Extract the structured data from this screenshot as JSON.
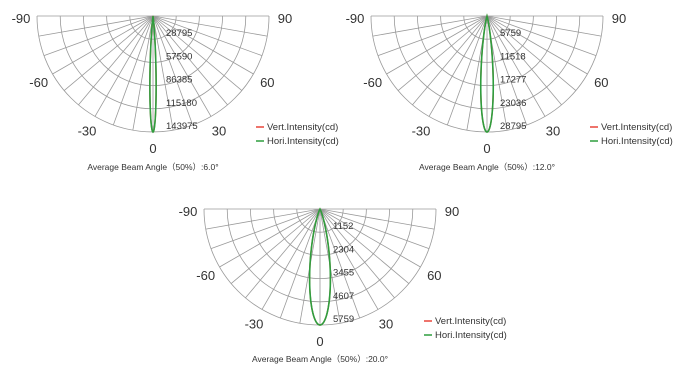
{
  "chart_data": [
    {
      "type": "polar",
      "angle_labels": [
        "-90",
        "-60",
        "-30",
        "0",
        "30",
        "60",
        "90"
      ],
      "radial_labels": [
        "28795",
        "57590",
        "86385",
        "115180",
        "143975"
      ],
      "rmax": 143975,
      "series": [
        {
          "name": "Vert.Intensity(cd)",
          "color": "#e8463a",
          "beam_angle": 6.0
        },
        {
          "name": "Hori.Intensity(cd)",
          "color": "#2e9e3e",
          "beam_angle": 6.0
        }
      ],
      "beam_label": "Average Beam Angle（50%）:6.0°"
    },
    {
      "type": "polar",
      "angle_labels": [
        "-90",
        "-60",
        "-30",
        "0",
        "30",
        "60",
        "90"
      ],
      "radial_labels": [
        "5759",
        "11518",
        "17277",
        "23036",
        "28795"
      ],
      "rmax": 28795,
      "series": [
        {
          "name": "Vert.Intensity(cd)",
          "color": "#e8463a",
          "beam_angle": 12.0
        },
        {
          "name": "Hori.Intensity(cd)",
          "color": "#2e9e3e",
          "beam_angle": 12.0
        }
      ],
      "beam_label": "Average Beam Angle（50%）:12.0°"
    },
    {
      "type": "polar",
      "angle_labels": [
        "-90",
        "-60",
        "-30",
        "0",
        "30",
        "60",
        "90"
      ],
      "radial_labels": [
        "1152",
        "2304",
        "3455",
        "4607",
        "5759"
      ],
      "rmax": 5759,
      "series": [
        {
          "name": "Vert.Intensity(cd)",
          "color": "#e8463a",
          "beam_angle": 20.0
        },
        {
          "name": "Hori.Intensity(cd)",
          "color": "#2e9e3e",
          "beam_angle": 20.0
        }
      ],
      "beam_label": "Average Beam Angle（50%）:20.0°"
    }
  ]
}
